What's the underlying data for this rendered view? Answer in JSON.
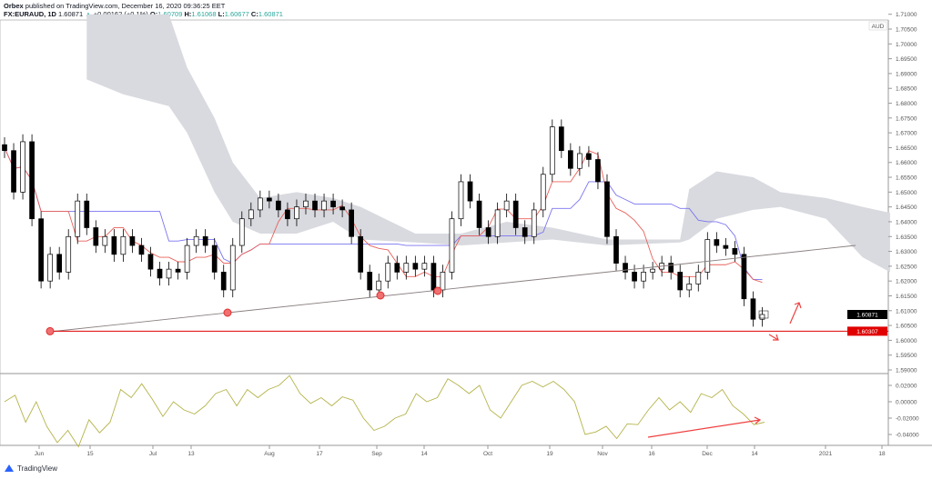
{
  "header": {
    "publisher": "Orbex",
    "published_text": "published on TradingView.com, December 16, 2020 09:36:25 EET",
    "symbol": "FX:EURAUD, 1D",
    "last": "1.60871",
    "change": "+0.00162 (+0.1%)",
    "o_label": "O:",
    "o": "1.60709",
    "h_label": "H:",
    "h": "1.61068",
    "l_label": "L:",
    "l": "1.60677",
    "c_label": "C:",
    "c": "1.60871"
  },
  "price_axis": {
    "currency": "AUD",
    "ticks": [
      "1.71000",
      "1.70500",
      "1.70000",
      "1.69500",
      "1.69000",
      "1.68500",
      "1.68000",
      "1.67500",
      "1.67000",
      "1.66500",
      "1.66000",
      "1.65500",
      "1.65000",
      "1.64500",
      "1.64000",
      "1.63500",
      "1.63000",
      "1.62500",
      "1.62000",
      "1.61500",
      "1.61000",
      "1.60500",
      "1.60000",
      "1.59500",
      "1.59000"
    ],
    "last_price_label": "1.60871",
    "support_label": "1.60307"
  },
  "osc_axis": {
    "ticks": [
      "0.02000",
      "0.00000",
      "-0.02000",
      "-0.04000"
    ]
  },
  "time_axis": {
    "labels": [
      "Jun",
      "15",
      "Jul",
      "13",
      "Aug",
      "17",
      "Sep",
      "14",
      "Oct",
      "19",
      "Nov",
      "16",
      "Dec",
      "14",
      "2021",
      "18"
    ]
  },
  "colors": {
    "up": "#ffffff",
    "down": "#000000",
    "tenkan": "#e8605a",
    "kijun": "#7b74f0",
    "cloud": "#d9dadf",
    "support": "#e00000",
    "trendline": "#8a7f80",
    "oscillator": "#b5b34a",
    "annotation": "#f04040"
  },
  "chart_data": {
    "type": "candlestick",
    "symbol": "FX:EURAUD",
    "closes": [
      1.664,
      1.65,
      1.667,
      1.641,
      1.62,
      1.629,
      1.623,
      1.635,
      1.647,
      1.638,
      1.632,
      1.635,
      1.629,
      1.635,
      1.632,
      1.629,
      1.624,
      1.621,
      1.624,
      1.623,
      1.632,
      1.635,
      1.632,
      1.623,
      1.617,
      1.632,
      1.641,
      1.644,
      1.648,
      1.647,
      1.644,
      1.641,
      1.645,
      1.647,
      1.644,
      1.647,
      1.645,
      1.644,
      1.635,
      1.623,
      1.617,
      1.62,
      1.626,
      1.623,
      1.626,
      1.624,
      1.626,
      1.617,
      1.623,
      1.641,
      1.6535,
      1.647,
      1.638,
      1.635,
      1.644,
      1.647,
      1.638,
      1.635,
      1.644,
      1.656,
      1.672,
      1.664,
      1.658,
      1.663,
      1.661,
      1.6535,
      1.635,
      1.626,
      1.623,
      1.62,
      1.623,
      1.624,
      1.626,
      1.623,
      1.617,
      1.619,
      1.623,
      1.634,
      1.632,
      1.631,
      1.629,
      1.614,
      1.6071,
      1.60871
    ],
    "cloud": [
      [
        9,
        1.71,
        1.688
      ],
      [
        13,
        1.71,
        1.683
      ],
      [
        18,
        1.71,
        1.679
      ],
      [
        20,
        1.692,
        1.67
      ],
      [
        23,
        1.675,
        1.65
      ],
      [
        25,
        1.66,
        1.64
      ],
      [
        28,
        1.648,
        1.636
      ],
      [
        32,
        1.65,
        1.636
      ],
      [
        36,
        1.648,
        1.64
      ],
      [
        39,
        1.645,
        1.634
      ],
      [
        45,
        1.636,
        1.633
      ],
      [
        50,
        1.636,
        1.632
      ],
      [
        55,
        1.64,
        1.633
      ],
      [
        60,
        1.638,
        1.634
      ],
      [
        66,
        1.634,
        1.632
      ],
      [
        74,
        1.634,
        1.633
      ],
      [
        75,
        1.651,
        1.634
      ],
      [
        78,
        1.657,
        1.641
      ],
      [
        82,
        1.655,
        1.644
      ],
      [
        85,
        1.65,
        1.645
      ],
      [
        90,
        1.648,
        1.641
      ],
      [
        94,
        1.645,
        1.628
      ],
      [
        97,
        1.643,
        1.623
      ]
    ],
    "support_level": 1.60307,
    "oscillator": [
      0.0,
      0.008,
      -0.025,
      0.0,
      -0.03,
      -0.05,
      -0.035,
      -0.055,
      -0.022,
      -0.038,
      -0.025,
      0.015,
      0.005,
      0.022,
      0.003,
      -0.018,
      0.0,
      -0.01,
      -0.015,
      -0.005,
      0.01,
      0.015,
      -0.005,
      0.015,
      0.005,
      0.015,
      0.02,
      0.032,
      0.01,
      -0.002,
      0.005,
      -0.005,
      0.006,
      0.002,
      -0.02,
      -0.035,
      -0.03,
      -0.02,
      -0.015,
      0.01,
      0.0,
      0.005,
      0.028,
      0.02,
      0.01,
      0.02,
      -0.01,
      -0.02,
      0.0,
      0.02,
      0.025,
      0.018,
      0.025,
      0.015,
      0.0,
      -0.04,
      -0.037,
      -0.03,
      -0.045,
      -0.027,
      -0.028,
      -0.01,
      0.005,
      -0.01,
      0.0,
      -0.013,
      0.01,
      0.005,
      0.015,
      -0.005,
      -0.015,
      -0.028,
      -0.025
    ],
    "price_range": [
      1.59,
      1.71
    ],
    "osc_range": [
      -0.05,
      0.035
    ]
  }
}
